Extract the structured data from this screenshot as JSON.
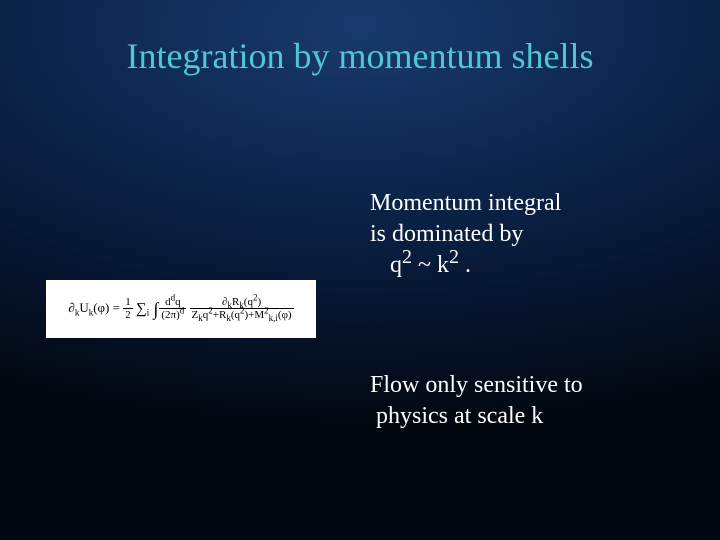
{
  "slide": {
    "background": {
      "type": "radial-gradient",
      "center_color": "#1a3a6e",
      "mid_color": "#0d2850",
      "outer_color": "#061530",
      "edge_color": "#020810"
    },
    "title": {
      "text": "Integration by momentum shells",
      "color": "#4fc8d4",
      "fontsize": 36
    },
    "body_text_1": {
      "line1": "Momentum integral",
      "line2": "is dominated by",
      "line3_pre": "q",
      "line3_sup1": "2",
      "line3_mid": " ~ k",
      "line3_sup2": "2",
      "line3_post": " .",
      "color": "#ffffff",
      "fontsize": 24
    },
    "body_text_2": {
      "line1": "Flow only sensitive to",
      "line2": "physics at scale k",
      "color": "#ffffff",
      "fontsize": 24
    },
    "formula": {
      "background": "#ffffff",
      "text_color": "#000000",
      "fontsize": 13,
      "lhs_partial": "∂",
      "lhs_sub1": "k",
      "lhs_U": "U",
      "lhs_sub2": "k",
      "lhs_arg": "(φ)",
      "eq": " = ",
      "half_num": "1",
      "half_den": "2",
      "sum": "∑",
      "sum_sub": "i",
      "integral": "∫",
      "meas_num": "d",
      "meas_num_sup": "d",
      "meas_num_q": "q",
      "meas_den_open": "(2π)",
      "meas_den_sup": "d",
      "main_num_partial": "∂",
      "main_num_sub": "k",
      "main_num_R": "R",
      "main_num_Rsub": "k",
      "main_num_arg_open": "(q",
      "main_num_arg_sup": "2",
      "main_num_arg_close": ")",
      "main_den_Z": "Z",
      "main_den_Zsub": "k",
      "main_den_q": "q",
      "main_den_qsup": "2",
      "main_den_plus1": "+R",
      "main_den_Rsub": "k",
      "main_den_Rarg_open": "(q",
      "main_den_Rarg_sup": "2",
      "main_den_Rarg_close": ")+M",
      "main_den_Msup1": "2",
      "main_den_Msub": "k,i",
      "main_den_Marg": "(φ)"
    }
  }
}
